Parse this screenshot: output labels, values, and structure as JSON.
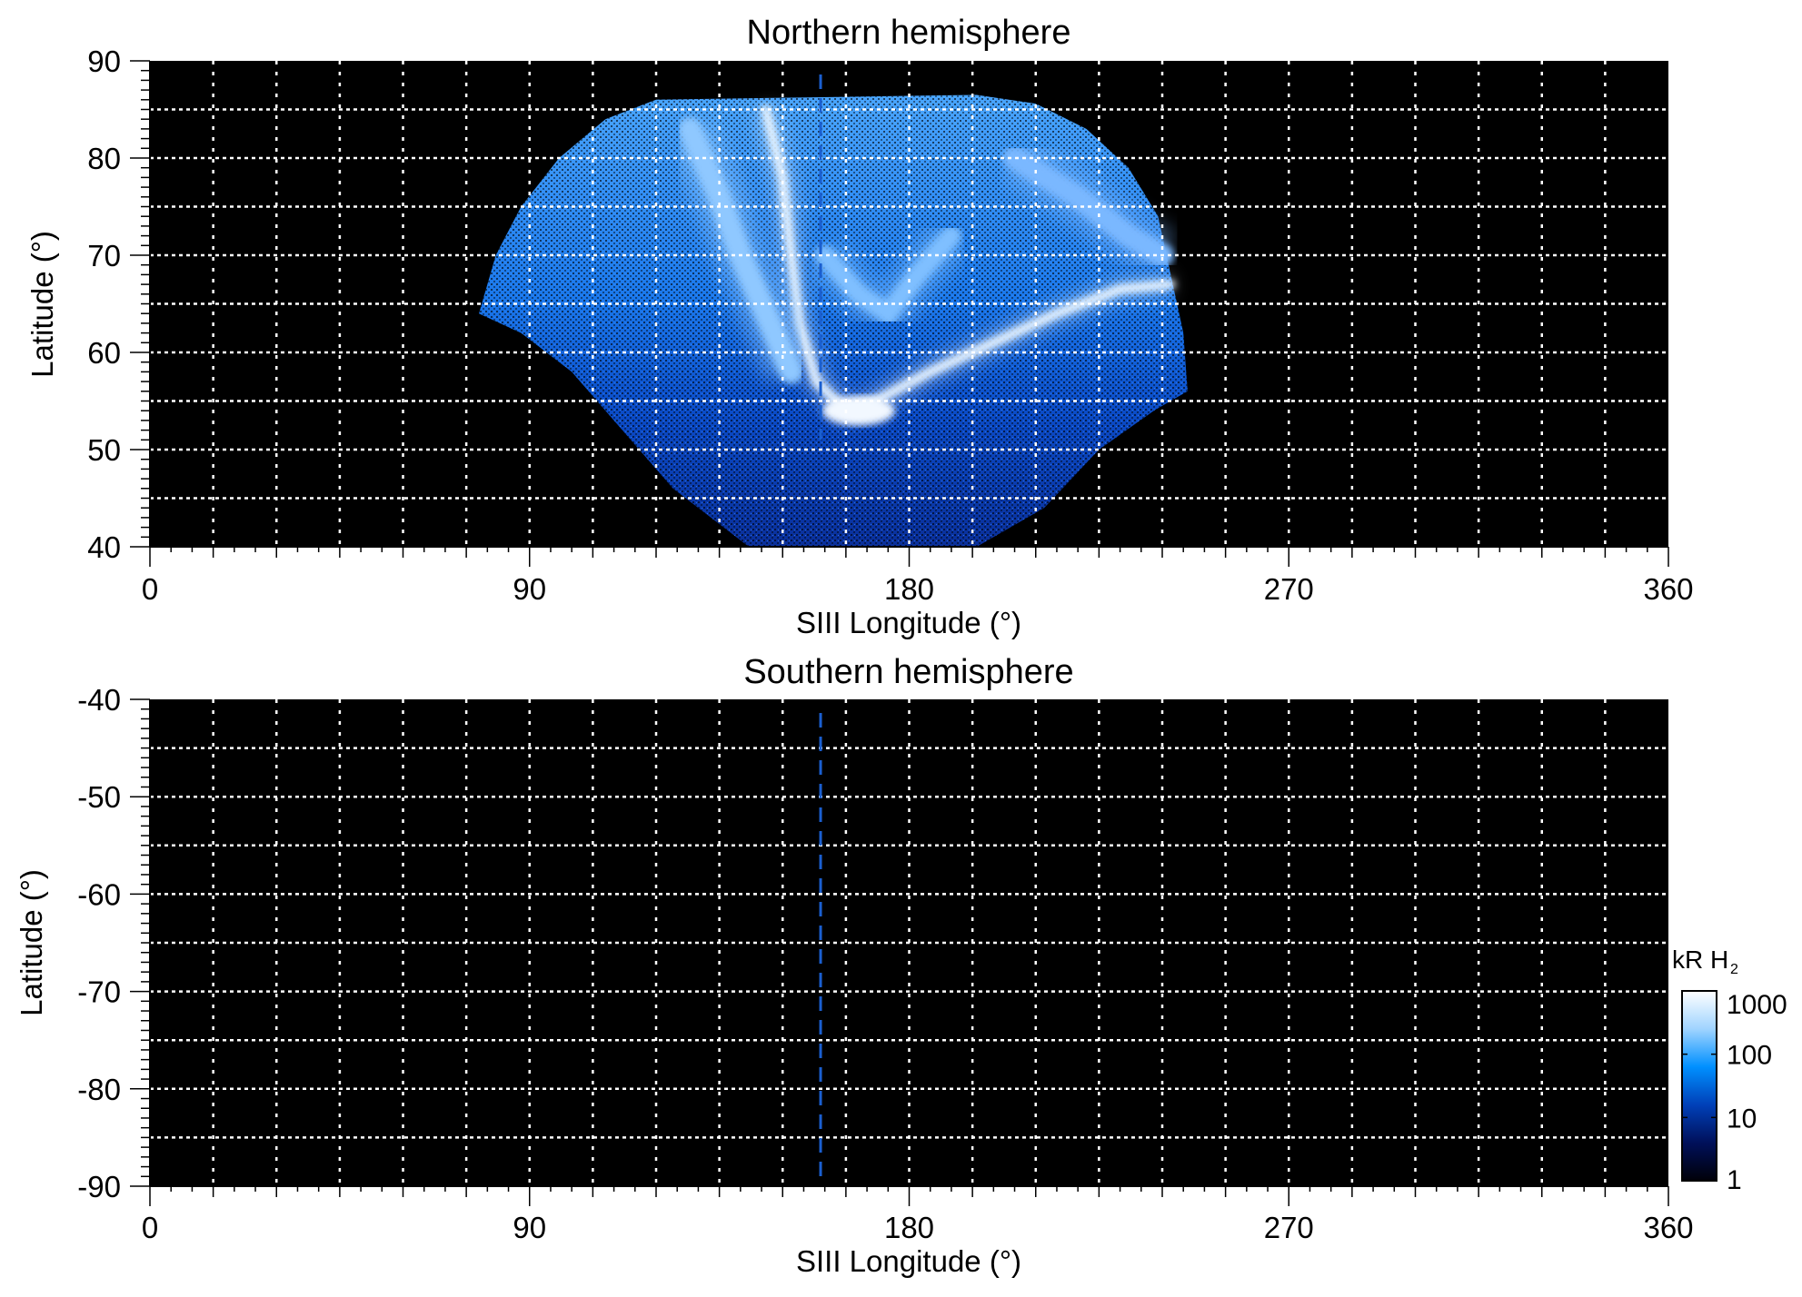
{
  "chart_data": [
    {
      "type": "heatmap",
      "title": "Northern hemisphere",
      "xlabel": "SIII Longitude (°)",
      "ylabel": "Latitude (°)",
      "xlim": [
        0,
        360
      ],
      "ylim": [
        40,
        90
      ],
      "xticks": [
        "0",
        "90",
        "180",
        "270",
        "360"
      ],
      "yticks": [
        "40",
        "50",
        "60",
        "70",
        "80",
        "90"
      ],
      "grid": {
        "on": true,
        "style": "dotted",
        "color": "#ffffff",
        "x_step": 15,
        "y_step": 5
      },
      "reference_line": {
        "longitude": 159,
        "style": "dashed",
        "color": "#1a5fd0"
      },
      "background": "#000000",
      "content": "auroral emission map, bright main oval spanning approx. longitude 80–245°, latitude 40–86°"
    },
    {
      "type": "heatmap",
      "title": "Southern hemisphere",
      "xlabel": "SIII Longitude (°)",
      "ylabel": "Latitude (°)",
      "xlim": [
        0,
        360
      ],
      "ylim": [
        -90,
        -40
      ],
      "xticks": [
        "0",
        "90",
        "180",
        "270",
        "360"
      ],
      "yticks": [
        "-90",
        "-80",
        "-70",
        "-60",
        "-50",
        "-40"
      ],
      "grid": {
        "on": true,
        "style": "dotted",
        "color": "#ffffff",
        "x_step": 15,
        "y_step": 5
      },
      "reference_line": {
        "longitude": 159,
        "style": "dashed",
        "color": "#1a5fd0"
      },
      "background": "#000000",
      "content": "no data (empty)"
    }
  ],
  "colorbar": {
    "label_main": "kR H",
    "label_sub": "2",
    "scale": "log",
    "range": [
      1,
      1000
    ],
    "ticks": [
      "1",
      "10",
      "100",
      "1000"
    ],
    "colors": [
      "#000008",
      "#00105a",
      "#0040b8",
      "#0090ff",
      "#a0d4ff",
      "#ffffff"
    ]
  }
}
